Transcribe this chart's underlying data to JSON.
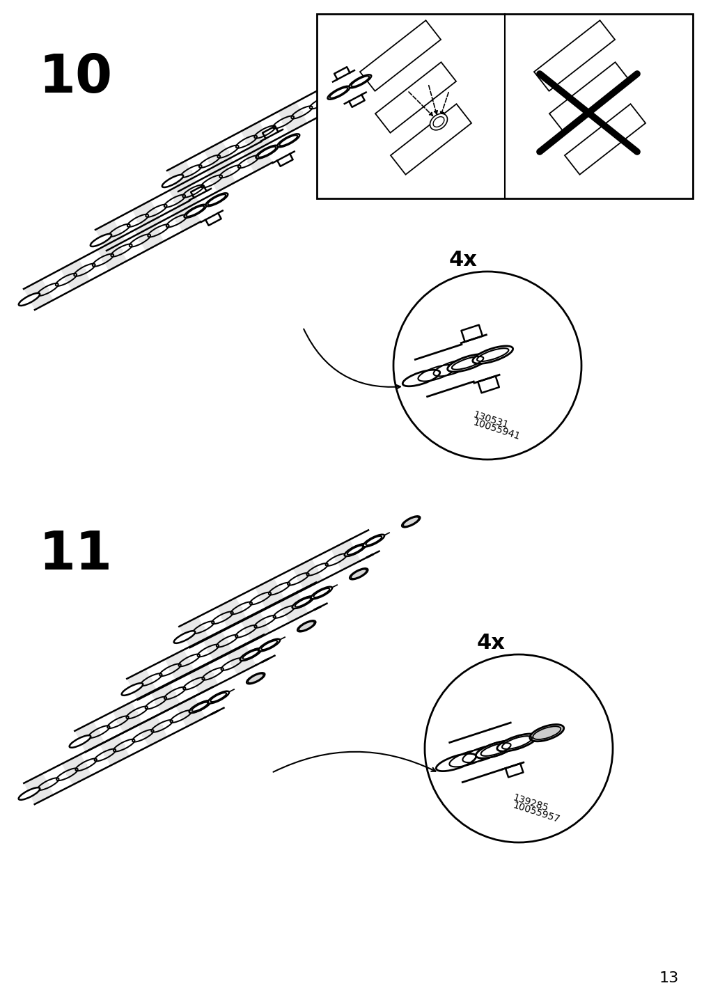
{
  "background_color": "#ffffff",
  "page_number": "13",
  "step10_label": "10",
  "step11_label": "11",
  "step10_4x": "4x",
  "step11_4x": "4x",
  "step10_part_num1": "130531",
  "step10_part_num2": "10055941",
  "step11_part_num1": "139285",
  "step11_part_num2": "10055957",
  "line_color": "#000000",
  "fig_width": 10.12,
  "fig_height": 14.32,
  "dpi": 100
}
